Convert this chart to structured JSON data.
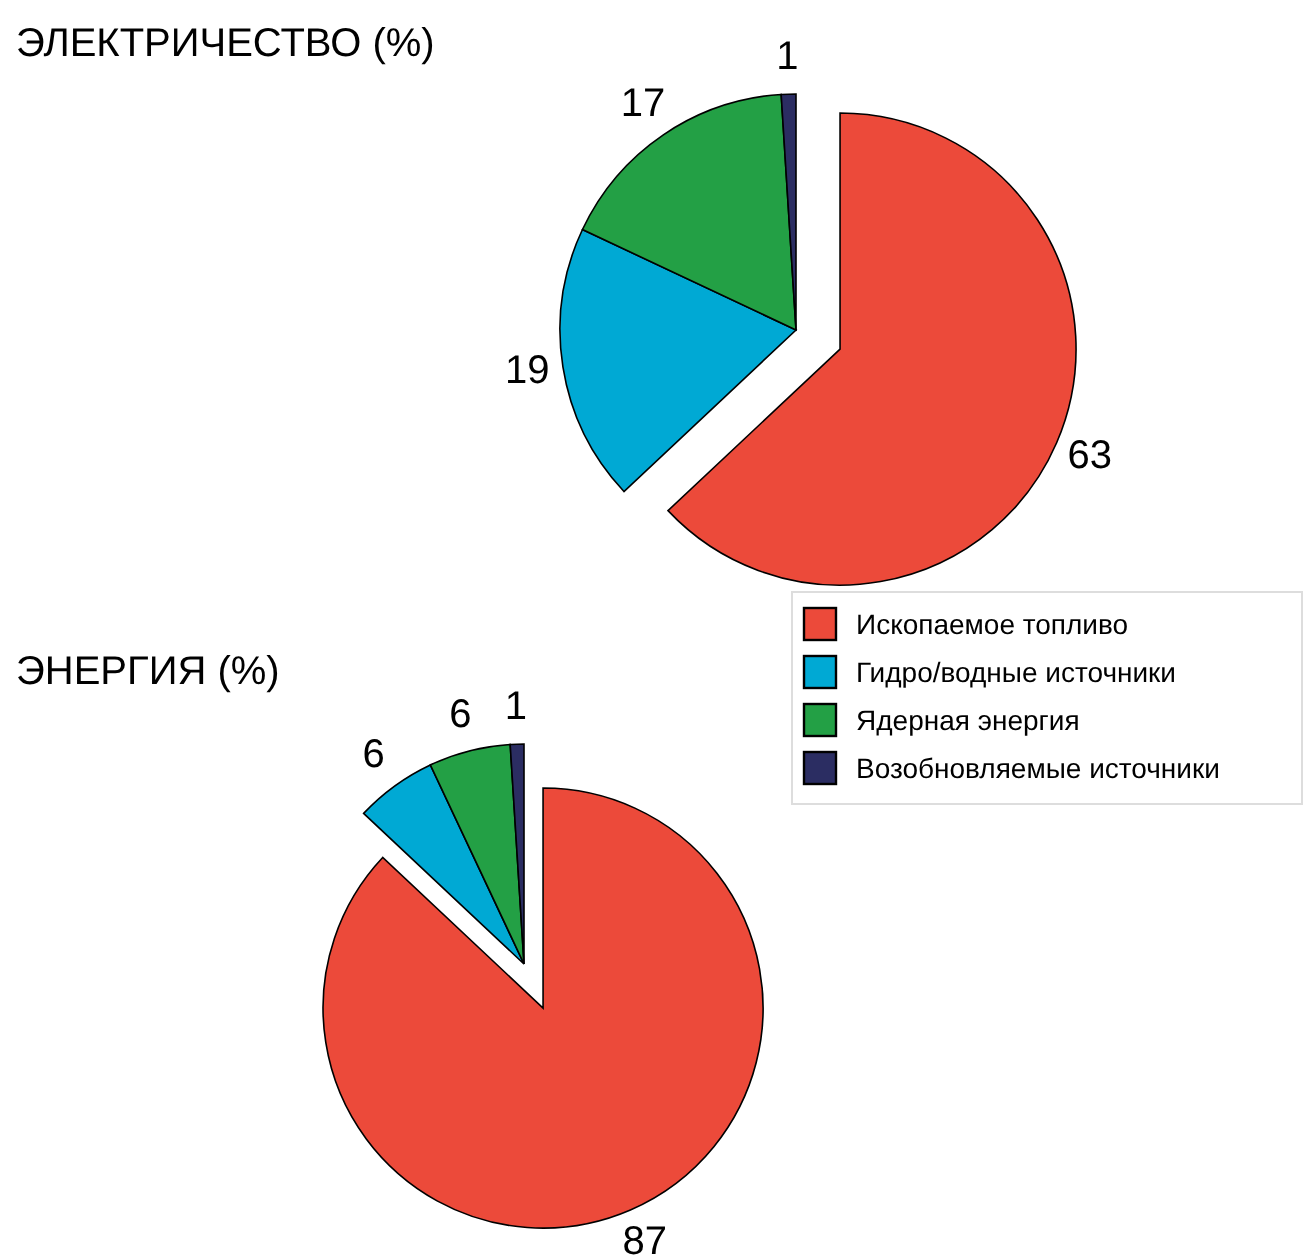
{
  "chart_data": [
    {
      "type": "pie",
      "title": "ЭЛЕКТРИЧЕСТВО (%)",
      "categories": [
        null,
        null,
        null,
        null
      ],
      "values": [
        63,
        19,
        17,
        1
      ],
      "colors": [
        "#ec4a3a",
        "#00a9d4",
        "#23a045",
        "#2b2d62"
      ],
      "data_labels": true
    },
    {
      "type": "pie",
      "title": "ЭНЕРГИЯ (%)",
      "categories": [
        "Ископаемое топливо",
        "Гидро/водные источники",
        "Ядерная энергия",
        "Возобновляемые источники"
      ],
      "values": [
        87,
        6,
        6,
        1
      ],
      "colors": [
        "#ec4a3a",
        "#00a9d4",
        "#23a045",
        "#2b2d62"
      ],
      "data_labels": true,
      "legend": "top right"
    }
  ]
}
